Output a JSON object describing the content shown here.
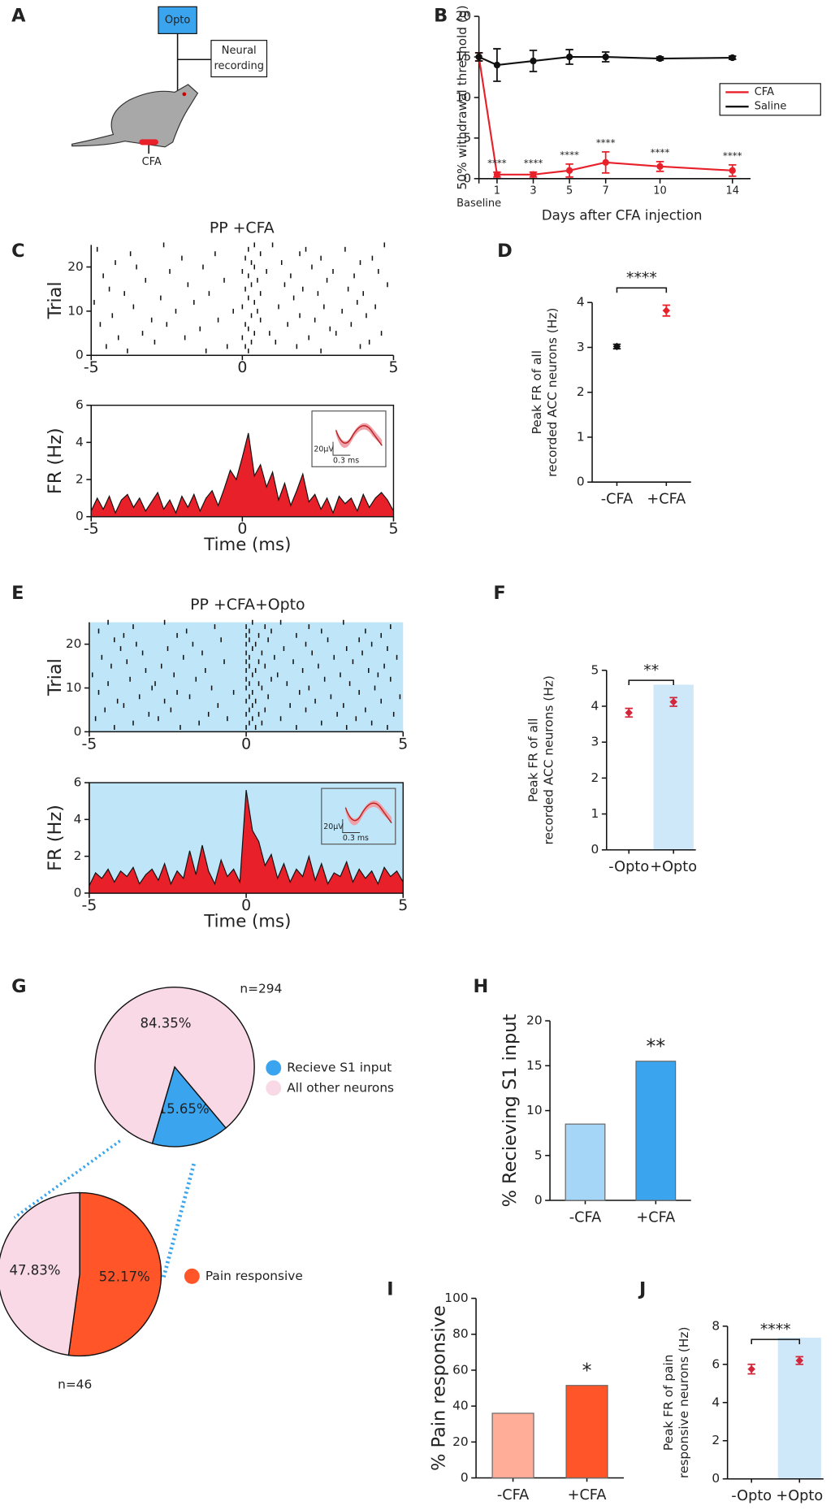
{
  "diagram": {
    "panel": "A",
    "opto": "Opto",
    "recording": [
      "Neural",
      "recording"
    ],
    "cfa": "CFA"
  },
  "chart_data": [
    {
      "type": "line",
      "panel": "B",
      "ylabel": "50% withdrawal threshold (g)",
      "xlabel": "Days after CFA injection",
      "x": [
        0,
        1,
        3,
        5,
        7,
        10,
        14
      ],
      "xlim": [
        0,
        15
      ],
      "xticks": [
        {
          "value": 0,
          "label": "Baseline"
        },
        1,
        3,
        5,
        7,
        10,
        14
      ],
      "ylim": [
        0,
        20
      ],
      "yticks": [
        0,
        5,
        10,
        15,
        20
      ],
      "legend": "upper right",
      "series": [
        {
          "name": "CFA",
          "color": "#e8202a",
          "values": [
            15,
            0.5,
            0.5,
            1,
            2,
            1.5,
            1
          ],
          "errors": [
            0.5,
            0.3,
            0.3,
            0.8,
            1.3,
            0.6,
            0.7
          ],
          "annotations": [
            null,
            "****",
            "****",
            "****",
            "****",
            "****",
            "****"
          ]
        },
        {
          "name": "Saline",
          "color": "#111111",
          "values": [
            15,
            14,
            14.5,
            15,
            15,
            14.8,
            14.9
          ],
          "errors": [
            0.5,
            2,
            1.3,
            0.9,
            0.6,
            0.2,
            0.2
          ]
        }
      ]
    },
    {
      "type": "raster",
      "panel": "C",
      "title": "PP +CFA",
      "ylabel": "Trial",
      "xlim": [
        -5,
        5
      ],
      "xticks": [
        -5,
        0,
        5
      ],
      "ylim": [
        0,
        25
      ],
      "yticks": [
        0,
        10,
        20
      ],
      "background": null,
      "events": [
        [
          -3.8,
          -1.2,
          0.2,
          2.6
        ],
        [
          -4.5,
          -0.5,
          0.1,
          1.8,
          3.9
        ],
        [
          -2.9,
          0.3,
          1.1,
          4.2
        ],
        [
          -4.1,
          -1.9,
          0,
          2.2
        ],
        [
          -3.3,
          0.4,
          0.9,
          3.1,
          4.6
        ],
        [
          -1.4,
          0.2,
          2.9
        ],
        [
          -4.7,
          -2.5,
          0.1,
          1.5,
          3.6
        ],
        [
          -3,
          -0.8,
          0.6,
          2.4
        ],
        [
          -4.3,
          0.3,
          1.9,
          4.1
        ],
        [
          -2.2,
          -0.3,
          0.5,
          3.3
        ],
        [
          -3.6,
          0,
          1.2,
          2.7,
          4.4
        ],
        [
          -4.9,
          -1.6,
          0.4,
          3.8
        ],
        [
          -2.7,
          0.2,
          1.7
        ],
        [
          -3.9,
          -1.1,
          0.6,
          2.5,
          4
        ],
        [
          -4.4,
          0.1,
          2,
          3.5
        ],
        [
          -1.8,
          0.3,
          1.4,
          4.8
        ],
        [
          -3.2,
          -0.6,
          0.5,
          2.8
        ],
        [
          -4.6,
          0.2,
          1.6,
          3.7
        ],
        [
          -2.4,
          0,
          0.8,
          3,
          4.5
        ],
        [
          -3.5,
          -1.3,
          0.4,
          2.3
        ],
        [
          -4.2,
          0.3,
          1.3,
          3.9
        ],
        [
          -2,
          0.1,
          2.6,
          4.3
        ],
        [
          -3.7,
          -0.9,
          0.6,
          1.9
        ],
        [
          -4.8,
          0.2,
          2.1,
          3.4
        ],
        [
          -2.6,
          0.4,
          1,
          4.7
        ]
      ]
    },
    {
      "type": "area",
      "ylabel": "FR (Hz)",
      "xlabel": "Time (ms)",
      "xlim": [
        -5,
        5
      ],
      "xticks": [
        -5,
        0,
        5
      ],
      "ylim": [
        0,
        6
      ],
      "yticks": [
        0,
        2,
        4,
        6
      ],
      "color": "#e8202a",
      "background": null,
      "inset_labels": [
        "20µV",
        "0.3 ms"
      ],
      "x": [
        -5,
        -4.8,
        -4.6,
        -4.4,
        -4.2,
        -4,
        -3.8,
        -3.6,
        -3.4,
        -3.2,
        -3,
        -2.8,
        -2.6,
        -2.4,
        -2.2,
        -2,
        -1.8,
        -1.6,
        -1.4,
        -1.2,
        -1,
        -0.8,
        -0.6,
        -0.4,
        -0.2,
        0,
        0.2,
        0.4,
        0.6,
        0.8,
        1,
        1.2,
        1.4,
        1.6,
        1.8,
        2,
        2.2,
        2.4,
        2.6,
        2.8,
        3,
        3.2,
        3.4,
        3.6,
        3.8,
        4,
        4.2,
        4.4,
        4.6,
        4.8,
        5
      ],
      "values": [
        0.3,
        1,
        0.4,
        1.1,
        0.2,
        0.9,
        1.2,
        0.5,
        1,
        0.3,
        0.8,
        1.3,
        0.4,
        0.9,
        0.2,
        1.1,
        0.5,
        1.2,
        0.3,
        1,
        1.4,
        0.6,
        1.5,
        2.5,
        2,
        3.2,
        4.5,
        2.2,
        2.8,
        1.6,
        2.4,
        0.9,
        1.8,
        0.6,
        1.4,
        2.3,
        0.8,
        1.2,
        0.4,
        1,
        0.2,
        1.1,
        0.7,
        1,
        0.3,
        1.2,
        0.5,
        1,
        1.3,
        0.9,
        0.3
      ]
    },
    {
      "type": "dot",
      "panel": "D",
      "ylabel": [
        "Peak FR of all",
        "recorded ACC neurons  (Hz)"
      ],
      "categories": [
        "-CFA",
        "+CFA"
      ],
      "values": [
        3.02,
        3.82
      ],
      "errors": [
        0.05,
        0.12
      ],
      "colors": [
        "#111111",
        "#e8202a"
      ],
      "bar_values": [
        null,
        null
      ],
      "ylim": [
        0,
        4
      ],
      "yticks": [
        0,
        1,
        2,
        3,
        4
      ],
      "significance": "****"
    },
    {
      "type": "raster",
      "panel": "E",
      "title": "PP +CFA+Opto",
      "ylabel": "Trial",
      "xlim": [
        -5,
        5
      ],
      "xticks": [
        -5,
        0,
        5
      ],
      "ylim": [
        0,
        25
      ],
      "yticks": [
        0,
        10,
        20
      ],
      "background": "#bfe6f8",
      "events": [
        [
          -4.2,
          -2.1,
          0,
          0.3,
          1.6,
          3.2,
          4.5
        ],
        [
          -3.6,
          -1.5,
          0.1,
          0.5,
          2.4,
          4
        ],
        [
          -4.8,
          -2.8,
          -0.6,
          0.2,
          1.1,
          3.5
        ],
        [
          -3.1,
          -1.2,
          0,
          0.4,
          2.9,
          4.7
        ],
        [
          -4.5,
          -2.4,
          0.1,
          0.6,
          1.9,
          3.8
        ],
        [
          -3.9,
          -0.9,
          0.2,
          1.4,
          3.1
        ],
        [
          -4.1,
          -2.6,
          0,
          0.3,
          2.2,
          4.3
        ],
        [
          -3.4,
          -1.8,
          0.1,
          0.7,
          2.7,
          4.9
        ],
        [
          -4.7,
          -2.2,
          -0.4,
          0.2,
          1.7,
          3.6
        ],
        [
          -3,
          -1.1,
          0,
          0.5,
          2,
          4.1
        ],
        [
          -4.4,
          -2.9,
          0.1,
          0.4,
          1.3,
          3.3
        ],
        [
          -3.7,
          -1.6,
          0,
          0.8,
          2.5,
          4.6
        ],
        [
          -4.9,
          -2.3,
          0.2,
          1,
          3,
          4.2
        ],
        [
          -3.2,
          -1.3,
          0,
          0.3,
          1.8,
          3.9
        ],
        [
          -4.3,
          -2.7,
          0.1,
          0.6,
          2.3,
          4.4
        ],
        [
          -3.8,
          -0.7,
          0,
          0.4,
          1.5,
          3.4
        ],
        [
          -4.6,
          -2,
          0.1,
          0.9,
          2.8,
          4.8
        ],
        [
          -3.3,
          -1.4,
          0,
          0.5,
          2.1,
          3.7
        ],
        [
          -4,
          -2.5,
          0.2,
          1.2,
          3.2,
          4.5
        ],
        [
          -3.5,
          -1.7,
          0,
          0.3,
          1.9,
          4
        ],
        [
          -4.2,
          -0.8,
          0.1,
          0.7,
          2.6,
          3.6
        ],
        [
          -3.9,
          -2.2,
          0,
          0.4,
          1.6,
          4.3
        ],
        [
          -4.7,
          -1.9,
          0.1,
          0.8,
          2.4,
          3.8
        ],
        [
          -3.6,
          -1,
          0,
          0.6,
          2,
          4.6
        ],
        [
          -4.4,
          -2.6,
          0.2,
          1.1,
          3.1
        ]
      ]
    },
    {
      "type": "area",
      "ylabel": "FR (Hz)",
      "xlabel": "Time (ms)",
      "xlim": [
        -5,
        5
      ],
      "xticks": [
        -5,
        0,
        5
      ],
      "ylim": [
        0,
        6
      ],
      "yticks": [
        0,
        2,
        4,
        6
      ],
      "color": "#e8202a",
      "background": "#bfe6f8",
      "inset_labels": [
        "20µV",
        "0.3 ms"
      ],
      "x": [
        -5,
        -4.8,
        -4.6,
        -4.4,
        -4.2,
        -4,
        -3.8,
        -3.6,
        -3.4,
        -3.2,
        -3,
        -2.8,
        -2.6,
        -2.4,
        -2.2,
        -2,
        -1.8,
        -1.6,
        -1.4,
        -1.2,
        -1,
        -0.8,
        -0.6,
        -0.4,
        -0.2,
        0,
        0.2,
        0.4,
        0.6,
        0.8,
        1,
        1.2,
        1.4,
        1.6,
        1.8,
        2,
        2.2,
        2.4,
        2.6,
        2.8,
        3,
        3.2,
        3.4,
        3.6,
        3.8,
        4,
        4.2,
        4.4,
        4.6,
        4.8,
        5
      ],
      "values": [
        0.4,
        1.1,
        0.8,
        1.3,
        0.6,
        1.2,
        0.9,
        1.4,
        0.5,
        1,
        1.3,
        0.7,
        1.6,
        0.5,
        1.2,
        0.8,
        2.3,
        1,
        2.6,
        1.2,
        0.5,
        1.8,
        0.9,
        1.3,
        0.6,
        5.6,
        3.4,
        2.8,
        1.5,
        2.1,
        0.8,
        1.6,
        0.6,
        1.3,
        0.9,
        2,
        0.7,
        1.6,
        0.5,
        1.1,
        0.9,
        1.7,
        0.6,
        1.3,
        0.8,
        1.2,
        0.5,
        1.4,
        0.9,
        1.2,
        0.6
      ]
    },
    {
      "type": "dot",
      "panel": "F",
      "ylabel": [
        "Peak FR of all",
        "recorded ACC neurons (Hz)"
      ],
      "categories": [
        "-Opto",
        "+Opto"
      ],
      "values": [
        3.82,
        4.12
      ],
      "errors": [
        0.12,
        0.12
      ],
      "colors": [
        "#d3263a",
        "#d3263a"
      ],
      "bar_values": [
        null,
        4.6
      ],
      "ylim": [
        0,
        5
      ],
      "yticks": [
        0,
        1,
        2,
        3,
        4,
        5
      ],
      "significance": "**"
    },
    {
      "type": "pie",
      "panel": "G",
      "n_label": "n=294",
      "categories": [
        "Recieve S1 input",
        "All other neurons"
      ],
      "values": [
        15.65,
        84.35
      ],
      "value_labels": [
        "15.65%",
        "84.35%"
      ],
      "colors": [
        "#3aa5ee",
        "#f9d9e5"
      ]
    },
    {
      "type": "pie",
      "n_label": "n=46",
      "categories": [
        "Pain responsive",
        null
      ],
      "values": [
        52.17,
        47.83
      ],
      "value_labels": [
        "52.17%",
        "47.83%"
      ],
      "colors": [
        "#ff5528",
        "#f9d9e5"
      ]
    },
    {
      "type": "bar",
      "panel": "H",
      "ylabel": "% Recieving S1 input",
      "categories": [
        "-CFA",
        "+CFA"
      ],
      "values": [
        8.5,
        15.5
      ],
      "colors": [
        "#a6d6f7",
        "#3aa5ee"
      ],
      "ylim": [
        0,
        20
      ],
      "yticks": [
        0,
        5,
        10,
        15,
        20
      ],
      "significance": "**"
    },
    {
      "type": "bar",
      "panel": "I",
      "ylabel": "% Pain responsive",
      "categories": [
        "-CFA",
        "+CFA"
      ],
      "values": [
        36,
        51.5
      ],
      "colors": [
        "#ffac98",
        "#ff5528"
      ],
      "ylim": [
        0,
        100
      ],
      "yticks": [
        0,
        20,
        40,
        60,
        80,
        100
      ],
      "significance": "*"
    },
    {
      "type": "dot",
      "panel": "J",
      "ylabel": [
        "Peak FR of pain",
        "responsive neurons  (Hz)"
      ],
      "categories": [
        "-Opto",
        "+Opto"
      ],
      "values": [
        5.75,
        6.2
      ],
      "errors": [
        0.25,
        0.2
      ],
      "colors": [
        "#d3263a",
        "#d3263a"
      ],
      "bar_values": [
        null,
        7.4
      ],
      "ylim": [
        0,
        8
      ],
      "yticks": [
        0,
        2,
        4,
        6,
        8
      ],
      "significance": "****"
    }
  ]
}
